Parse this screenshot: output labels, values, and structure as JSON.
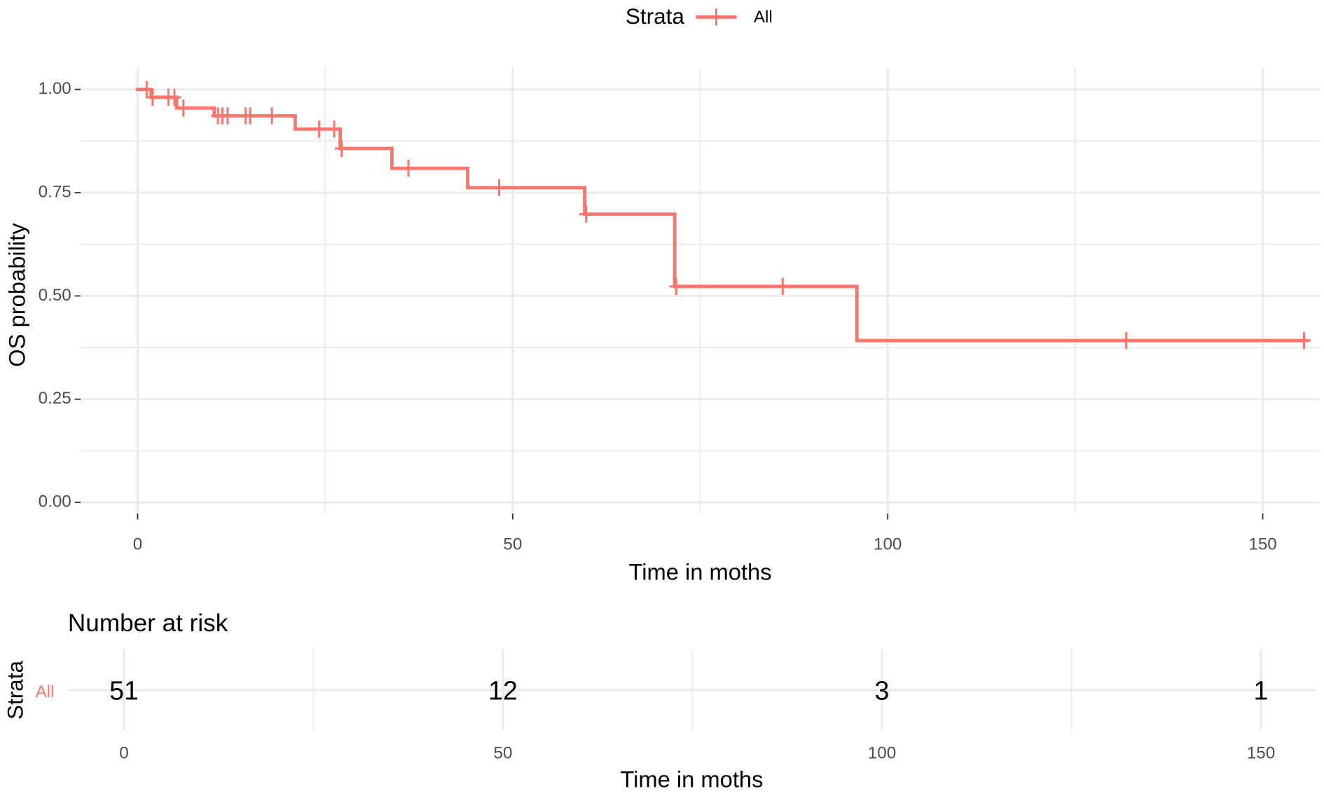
{
  "chart_data": [
    {
      "type": "km",
      "legend_title": "Strata",
      "series": [
        {
          "name": "All",
          "color": "#f8766d",
          "x": [
            0,
            1.8,
            5.2,
            10.2,
            21.0,
            27.0,
            33.9,
            44.0,
            59.6,
            71.6,
            95.9
          ],
          "values": [
            1.0,
            0.981,
            0.955,
            0.936,
            0.904,
            0.857,
            0.809,
            0.762,
            0.698,
            0.523,
            0.392
          ],
          "end_x": 155.9,
          "censor_x": [
            1.2,
            2.0,
            4.1,
            4.9,
            6.1,
            10.7,
            11.3,
            12.0,
            14.4,
            15.0,
            17.9,
            24.2,
            26.2,
            27.2,
            36.1,
            48.2,
            59.8,
            71.8,
            86.0,
            131.8,
            155.5
          ]
        }
      ],
      "x_label": "Time in moths",
      "y_label": "OS probability",
      "xlim": [
        -7.6,
        157.6
      ],
      "ylim": [
        -0.027,
        1.052
      ],
      "xticks": [
        0,
        50,
        100,
        150
      ],
      "yticks": [
        {
          "value": 0,
          "label": "0.00"
        },
        {
          "value": 0.25,
          "label": "0.25"
        },
        {
          "value": 0.5,
          "label": "0.50"
        },
        {
          "value": 0.75,
          "label": "0.75"
        },
        {
          "value": 1,
          "label": "1.00"
        }
      ],
      "minor_xticks": [
        25,
        75,
        125
      ],
      "minor_yticks": [
        0.125,
        0.375,
        0.625,
        0.875
      ],
      "grid": true
    },
    {
      "type": "risk_table",
      "title": "Number at risk",
      "y_label": "Strata",
      "x_label": "Time in moths",
      "xlim": [
        -7.4,
        157.2
      ],
      "xticks": [
        0,
        50,
        100,
        150
      ],
      "minor_xticks": [
        25,
        75,
        125
      ],
      "series": [
        {
          "name": "All",
          "color": "#f8766d",
          "x": [
            0,
            50,
            100,
            150
          ],
          "values": [
            51,
            12,
            3,
            1
          ]
        }
      ]
    }
  ]
}
